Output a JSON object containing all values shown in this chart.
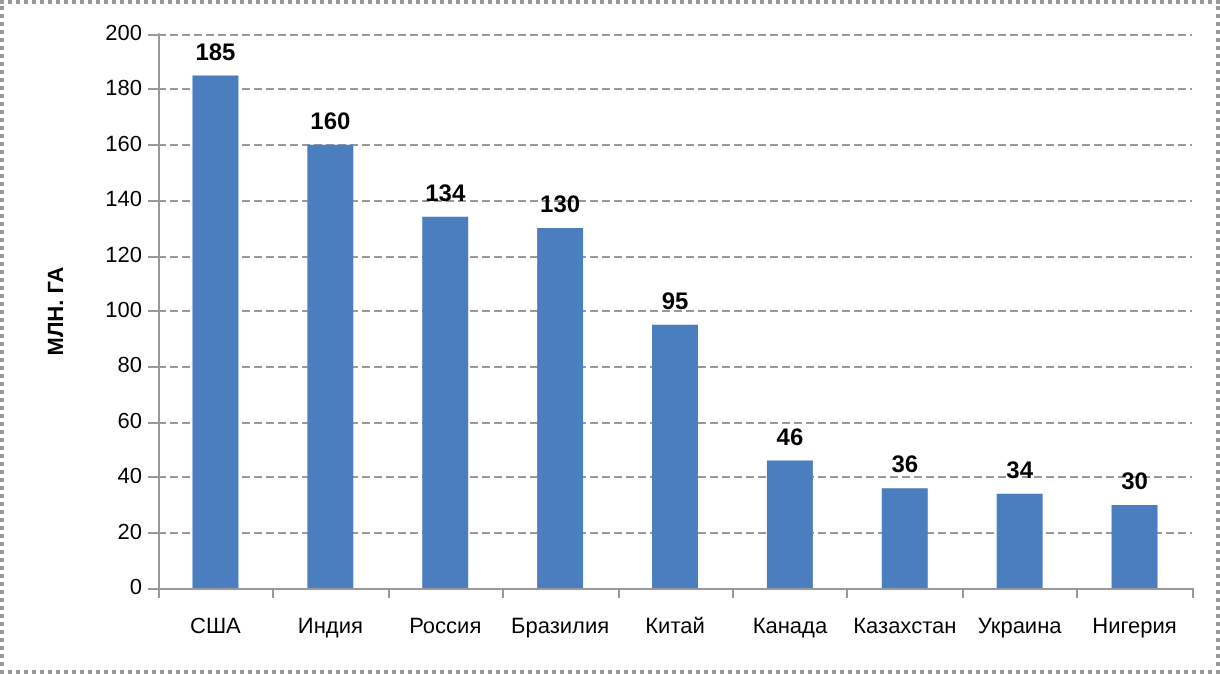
{
  "chart_data": {
    "type": "bar",
    "ylabel": "МЛН. ГА",
    "categories": [
      "США",
      "Индия",
      "Россия",
      "Бразилия",
      "Китай",
      "Канада",
      "Казахстан",
      "Украина",
      "Нигерия"
    ],
    "values": [
      185,
      160,
      134,
      130,
      95,
      46,
      36,
      34,
      30
    ],
    "color": "#4a7ebf",
    "ylim": [
      0,
      200
    ],
    "yticks": [
      0,
      20,
      40,
      60,
      80,
      100,
      120,
      140,
      160,
      180,
      200
    ],
    "grid": "y",
    "data_labels": true
  }
}
